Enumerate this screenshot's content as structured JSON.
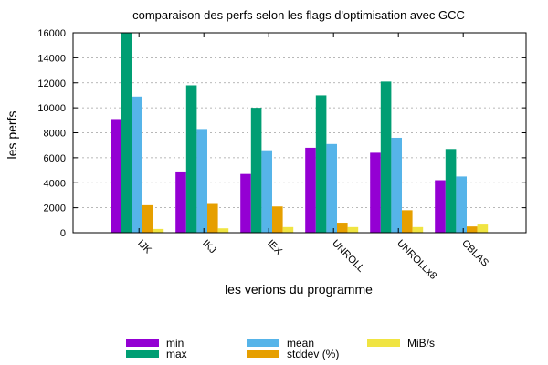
{
  "chart_data": {
    "type": "bar",
    "title": "comparaison des perfs selon les flags d'optimisation avec GCC",
    "xlabel": "les verions du programme",
    "ylabel": "les perfs",
    "ylim": [
      0,
      16000
    ],
    "yticks": [
      0,
      2000,
      4000,
      6000,
      8000,
      10000,
      12000,
      14000,
      16000
    ],
    "grid": true,
    "legend_position": "bottom",
    "categories": [
      "IJK",
      "IKJ",
      "IEX",
      "UNROLL",
      "UNROLLx8",
      "CBLAS"
    ],
    "series": [
      {
        "name": "min",
        "color": "#9400d3",
        "values": [
          9100,
          4900,
          4700,
          6800,
          6400,
          4200
        ]
      },
      {
        "name": "max",
        "color": "#009e73",
        "values": [
          16000,
          11800,
          10000,
          11000,
          12100,
          6700
        ]
      },
      {
        "name": "mean",
        "color": "#56b4e9",
        "values": [
          10900,
          8300,
          6600,
          7100,
          7600,
          4500
        ]
      },
      {
        "name": "stddev (%)",
        "color": "#e69f00",
        "values": [
          2200,
          2300,
          2100,
          800,
          1800,
          500
        ]
      },
      {
        "name": "MiB/s",
        "color": "#f0e442",
        "values": [
          300,
          350,
          450,
          450,
          450,
          650
        ]
      }
    ]
  }
}
